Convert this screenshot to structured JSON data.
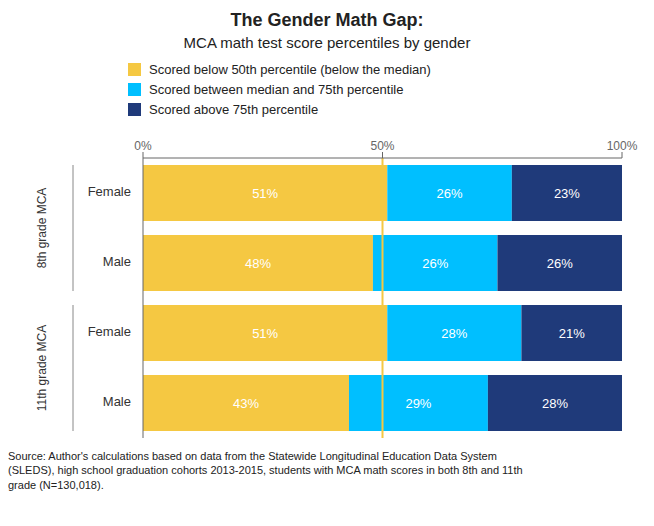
{
  "chart_data": {
    "type": "bar",
    "orientation": "horizontal",
    "stacked": true,
    "data_labels": true,
    "grid": false,
    "title": "The Gender Math Gap:",
    "subtitle": "MCA math test score percentiles by gender",
    "categories": [
      "Female",
      "Male",
      "Female",
      "Male"
    ],
    "groups": [
      "8th grade MCA",
      "11th grade MCA"
    ],
    "series": [
      {
        "name": "Scored below 50th percentile (below the median)",
        "color": "#F5C842",
        "values": [
          51,
          48,
          51,
          43
        ],
        "value_labels": [
          "51%",
          "48%",
          "51%",
          "43%"
        ]
      },
      {
        "name": "Scored between median and 75th percentile",
        "color": "#00BFFF",
        "values": [
          26,
          26,
          28,
          29
        ],
        "value_labels": [
          "26%",
          "26%",
          "28%",
          "29%"
        ]
      },
      {
        "name": "Scored above 75th percentile",
        "color": "#1F3A7A",
        "values": [
          23,
          26,
          21,
          28
        ],
        "value_labels": [
          "23%",
          "26%",
          "21%",
          "28%"
        ]
      }
    ],
    "label_color": "#FFFFFF",
    "xlim": [
      0,
      100
    ],
    "xticks": [
      {
        "value": 0,
        "label": "0%"
      },
      {
        "value": 50,
        "label": "50%"
      },
      {
        "value": 100,
        "label": "100%"
      }
    ],
    "vline": {
      "x": 50,
      "color": "#F5C842"
    },
    "annotations": [
      "Source: Author's calculations based on data from the Statewide Longitudinal Education Data System\n(SLEDS), high school graduation cohorts 2013-2015, students with MCA math scores in both 8th and 11th\ngrade (N=130,018)."
    ]
  }
}
